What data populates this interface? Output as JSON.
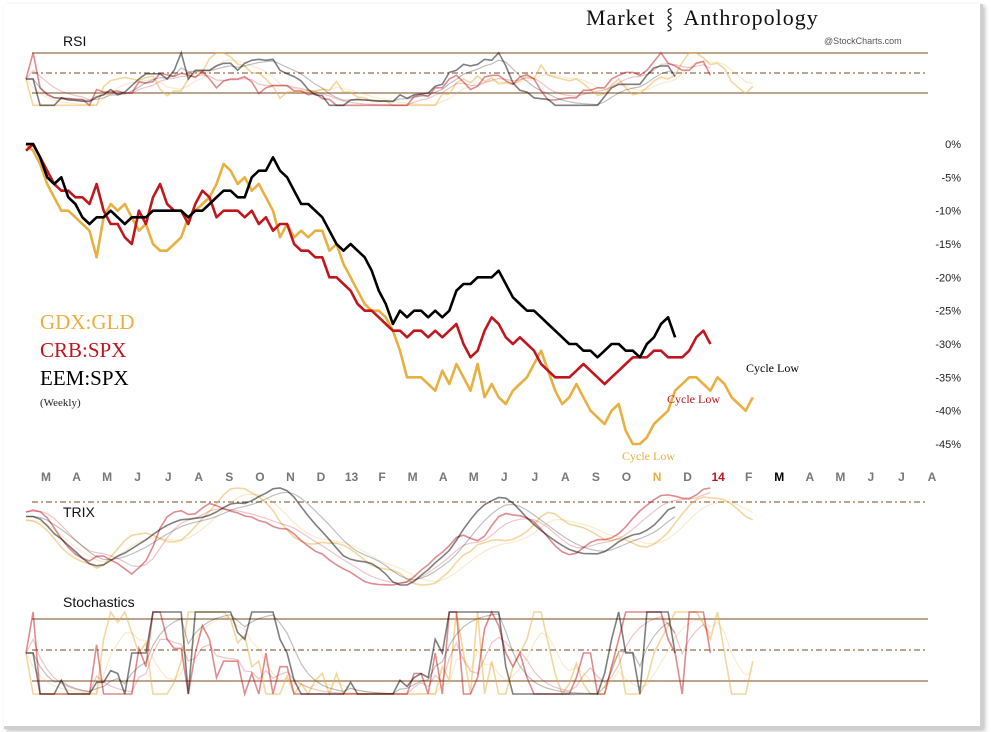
{
  "header": {
    "brand_left": "Market",
    "brand_right": "Anthropology",
    "brand_icon": "dna-helix-icon",
    "credit": "@StockCharts.com"
  },
  "panels": {
    "rsi_title": "RSI",
    "trix_title": "TRIX",
    "stoch_title": "Stochastics"
  },
  "legend": {
    "items": [
      {
        "label": "GDX:GLD",
        "color": "#e7b040"
      },
      {
        "label": "CRB:SPX",
        "color": "#c0171f"
      },
      {
        "label": "EEM:SPX",
        "color": "#000000"
      }
    ],
    "note": "(Weekly)"
  },
  "annotations": [
    {
      "text": "Cycle Low",
      "color": "#000000",
      "series": "EEM:SPX"
    },
    {
      "text": "Cycle Low",
      "color": "#c0171f",
      "series": "CRB:SPX"
    },
    {
      "text": "Cycle Low",
      "color": "#e7b040",
      "series": "GDX:GLD"
    }
  ],
  "chart_data": {
    "type": "line",
    "title": "Market Anthropology",
    "subtitle": "(Weekly)",
    "xlabel": "",
    "ylabel": "",
    "ylim": [
      -45,
      0
    ],
    "yticks": [
      0,
      -5,
      -10,
      -15,
      -20,
      -25,
      -30,
      -35,
      -40,
      -45
    ],
    "ytick_labels": [
      "0%",
      "-5%",
      "-10%",
      "-15%",
      "-20%",
      "-25%",
      "-30%",
      "-35%",
      "-40%",
      "-45%"
    ],
    "months": [
      "M",
      "A",
      "M",
      "J",
      "J",
      "A",
      "S",
      "O",
      "N",
      "D",
      "13",
      "F",
      "M",
      "A",
      "M",
      "J",
      "J",
      "A",
      "S",
      "O",
      "N",
      "D",
      "14",
      "F",
      "M",
      "A",
      "M",
      "J",
      "J",
      "A"
    ],
    "month_colors": {
      "20": "#e7b040",
      "22": "#c0171f",
      "24": "#000000"
    },
    "weeks_per_month": 4.33,
    "series": [
      {
        "name": "GDX:GLD",
        "color": "#e7b040",
        "values": [
          0,
          -1,
          -3,
          -6,
          -8,
          -10,
          -10,
          -11,
          -12,
          -13,
          -17,
          -11,
          -9,
          -10,
          -9,
          -11,
          -13,
          -12,
          -15,
          -16,
          -16,
          -15,
          -14,
          -11,
          -10,
          -9,
          -8,
          -6,
          -3,
          -4,
          -6,
          -5,
          -7,
          -6,
          -8,
          -10,
          -14,
          -12,
          -14,
          -13,
          -14,
          -13,
          -13,
          -16,
          -15,
          -18,
          -20,
          -22,
          -24,
          -25,
          -25,
          -26,
          -28,
          -31,
          -35,
          -35,
          -35,
          -36,
          -37,
          -34,
          -36,
          -33,
          -35,
          -37,
          -33,
          -38,
          -36,
          -38,
          -39,
          -37,
          -36,
          -35,
          -33,
          -31,
          -34,
          -37,
          -39,
          -38,
          -36,
          -38,
          -40,
          -41,
          -42,
          -40,
          -39,
          -43,
          -45,
          -45,
          -44,
          -42,
          -41,
          -40,
          -37,
          -36,
          -35,
          -35,
          -36,
          -37,
          -35,
          -36,
          -38,
          -39,
          -40,
          -38
        ]
      },
      {
        "name": "CRB:SPX",
        "color": "#c0171f",
        "values": [
          -1,
          0,
          -2,
          -4,
          -6,
          -7,
          -7,
          -8,
          -8,
          -9,
          -6,
          -10,
          -12,
          -12,
          -14,
          -15,
          -10,
          -12,
          -8,
          -6,
          -9,
          -10,
          -10,
          -12,
          -9,
          -7,
          -8,
          -11,
          -10,
          -10,
          -10,
          -11,
          -10,
          -12,
          -11,
          -13,
          -12,
          -12,
          -15,
          -16,
          -16,
          -17,
          -17,
          -20,
          -20,
          -21,
          -22,
          -24,
          -25,
          -25,
          -26,
          -27,
          -28,
          -28,
          -29,
          -28,
          -28,
          -29,
          -28,
          -29,
          -28,
          -27,
          -30,
          -32,
          -31,
          -28,
          -26,
          -27,
          -29,
          -30,
          -29,
          -30,
          -31,
          -33,
          -34,
          -35,
          -35,
          -35,
          -34,
          -33,
          -34,
          -35,
          -36,
          -35,
          -34,
          -33,
          -32,
          -32,
          -32,
          -31,
          -31,
          -32,
          -32,
          -32,
          -31,
          -29,
          -28,
          -30
        ]
      },
      {
        "name": "EEM:SPX",
        "color": "#000000",
        "values": [
          0,
          0,
          -2,
          -5,
          -6,
          -5,
          -8,
          -9,
          -11,
          -12,
          -11,
          -11,
          -10,
          -11,
          -12,
          -11,
          -11,
          -11,
          -10,
          -10,
          -10,
          -10,
          -10,
          -11,
          -10,
          -10,
          -9,
          -8,
          -7,
          -7,
          -8,
          -8,
          -5,
          -4,
          -4,
          -2,
          -4,
          -5,
          -7,
          -9,
          -9,
          -10,
          -11,
          -13,
          -15,
          -16,
          -15,
          -16,
          -17,
          -19,
          -22,
          -24,
          -27,
          -25,
          -26,
          -25,
          -25,
          -26,
          -25,
          -26,
          -25,
          -22,
          -21,
          -21,
          -20,
          -20,
          -20,
          -19,
          -21,
          -23,
          -24,
          -25,
          -25,
          -26,
          -27,
          -28,
          -29,
          -30,
          -30,
          -31,
          -31,
          -32,
          -31,
          -30,
          -30,
          -31,
          -31,
          -32,
          -30,
          -29,
          -27,
          -26,
          -29
        ]
      }
    ],
    "indicators": [
      {
        "type": "rsi",
        "title": "RSI",
        "levels": [
          "overbought",
          "midline",
          "oversold"
        ]
      },
      {
        "type": "trix",
        "title": "TRIX",
        "levels": [
          "signal"
        ]
      },
      {
        "type": "stochastics",
        "title": "Stochastics",
        "levels": [
          "overbought",
          "midline",
          "oversold"
        ]
      }
    ]
  }
}
